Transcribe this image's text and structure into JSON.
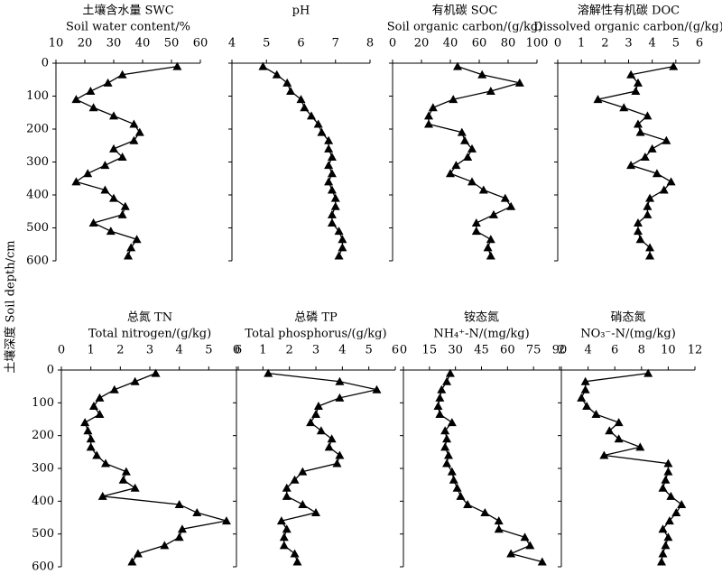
{
  "chart_data": [
    {
      "type": "line",
      "title": "土壤含水量 SWC",
      "subtitle": "Soil water content/%",
      "ylabel": "土壤深度 Soil depth/cm",
      "xlim": [
        10,
        60
      ],
      "xticks": [
        10,
        20,
        30,
        40,
        50,
        60
      ],
      "ylim": [
        0,
        600
      ],
      "yticks": [
        0,
        100,
        200,
        300,
        400,
        500,
        600
      ],
      "y": [
        10,
        35,
        60,
        85,
        110,
        135,
        160,
        185,
        210,
        235,
        260,
        285,
        310,
        335,
        360,
        385,
        410,
        435,
        460,
        485,
        510,
        535,
        560,
        585
      ],
      "values": [
        52,
        33,
        28,
        22,
        17,
        23,
        30,
        37,
        39,
        37,
        30,
        33,
        27,
        21,
        17,
        27,
        30,
        34,
        33,
        23,
        29,
        38,
        36,
        35
      ]
    },
    {
      "type": "line",
      "title": "pH",
      "xlim": [
        4,
        8
      ],
      "xticks": [
        4,
        5,
        6,
        7,
        8
      ],
      "ylim": [
        0,
        600
      ],
      "yticks": [
        0,
        100,
        200,
        300,
        400,
        500,
        600
      ],
      "y": [
        10,
        35,
        60,
        85,
        110,
        135,
        160,
        185,
        210,
        235,
        260,
        285,
        310,
        335,
        360,
        385,
        410,
        435,
        460,
        485,
        510,
        535,
        560,
        585
      ],
      "values": [
        4.9,
        5.3,
        5.6,
        5.7,
        6.0,
        6.1,
        6.3,
        6.5,
        6.6,
        6.8,
        6.8,
        6.9,
        6.8,
        6.9,
        6.8,
        6.9,
        7.0,
        7.0,
        6.9,
        6.9,
        7.1,
        7.2,
        7.2,
        7.1
      ]
    },
    {
      "type": "line",
      "title": "有机碳 SOC",
      "subtitle": "Soil organic carbon/(g/kg)",
      "xlim": [
        0,
        100
      ],
      "xticks": [
        0,
        20,
        40,
        60,
        80,
        100
      ],
      "ylim": [
        0,
        600
      ],
      "yticks": [
        0,
        100,
        200,
        300,
        400,
        500,
        600
      ],
      "y": [
        10,
        35,
        60,
        85,
        110,
        135,
        160,
        185,
        210,
        235,
        260,
        285,
        310,
        335,
        360,
        385,
        410,
        435,
        460,
        485,
        510,
        535,
        560,
        585
      ],
      "values": [
        45,
        62,
        88,
        68,
        42,
        28,
        25,
        25,
        48,
        50,
        55,
        52,
        44,
        40,
        55,
        63,
        78,
        82,
        70,
        58,
        58,
        68,
        66,
        68
      ]
    },
    {
      "type": "line",
      "title": "溶解性有机碳 DOC",
      "subtitle": "Dissolved organic carbon/(g/kg)",
      "xlim": [
        0,
        6
      ],
      "xticks": [
        0,
        1,
        2,
        3,
        4,
        5,
        6
      ],
      "ylim": [
        0,
        600
      ],
      "yticks": [
        0,
        100,
        200,
        300,
        400,
        500,
        600
      ],
      "y": [
        10,
        35,
        60,
        85,
        110,
        135,
        160,
        185,
        210,
        235,
        260,
        285,
        310,
        335,
        360,
        385,
        410,
        435,
        460,
        485,
        510,
        535,
        560,
        585
      ],
      "values": [
        4.9,
        3.1,
        3.4,
        3.3,
        1.7,
        2.8,
        3.8,
        3.4,
        3.5,
        4.6,
        4.0,
        3.7,
        3.1,
        4.2,
        4.8,
        4.5,
        3.9,
        3.8,
        3.8,
        3.4,
        3.4,
        3.5,
        3.9,
        3.9
      ]
    },
    {
      "type": "line",
      "title": "总氮 TN",
      "subtitle": "Total nitrogen/(g/kg)",
      "xlim": [
        0,
        6
      ],
      "xticks": [
        0,
        1,
        2,
        3,
        4,
        5,
        6
      ],
      "ylim": [
        0,
        600
      ],
      "yticks": [
        0,
        100,
        200,
        300,
        400,
        500,
        600
      ],
      "y": [
        10,
        35,
        60,
        85,
        110,
        135,
        160,
        185,
        210,
        235,
        260,
        285,
        310,
        335,
        360,
        385,
        410,
        435,
        460,
        485,
        510,
        535,
        560,
        585
      ],
      "values": [
        3.2,
        2.5,
        1.8,
        1.3,
        1.1,
        1.3,
        0.8,
        0.9,
        1.0,
        1.0,
        1.2,
        1.5,
        2.2,
        2.1,
        2.5,
        1.4,
        4.0,
        4.6,
        5.6,
        4.1,
        4.0,
        3.5,
        2.6,
        2.4
      ]
    },
    {
      "type": "line",
      "title": "总磷 TP",
      "subtitle": "Total phosphorus/(g/kg)",
      "xlim": [
        0,
        6
      ],
      "xticks": [
        0,
        1,
        2,
        3,
        4,
        5,
        6
      ],
      "ylim": [
        0,
        600
      ],
      "yticks": [
        0,
        100,
        200,
        300,
        400,
        500,
        600
      ],
      "y": [
        10,
        35,
        60,
        85,
        110,
        135,
        160,
        185,
        210,
        235,
        260,
        285,
        310,
        335,
        360,
        385,
        410,
        435,
        460,
        485,
        510,
        535,
        560,
        585
      ],
      "values": [
        1.2,
        3.9,
        5.3,
        3.9,
        3.1,
        3.0,
        2.8,
        3.2,
        3.6,
        3.5,
        3.9,
        3.8,
        2.5,
        2.2,
        1.9,
        1.9,
        2.5,
        3.0,
        1.7,
        1.9,
        1.8,
        1.8,
        2.2,
        2.3
      ]
    },
    {
      "type": "line",
      "title": "铵态氮",
      "subtitle": "NH₄⁺-N/(mg/kg)",
      "xlim": [
        0,
        90
      ],
      "xticks": [
        0,
        15,
        30,
        45,
        60,
        75,
        90
      ],
      "ylim": [
        0,
        600
      ],
      "yticks": [
        0,
        100,
        200,
        300,
        400,
        500,
        600
      ],
      "y": [
        10,
        35,
        60,
        85,
        110,
        135,
        160,
        185,
        210,
        235,
        260,
        285,
        310,
        335,
        360,
        385,
        410,
        435,
        460,
        485,
        510,
        535,
        560,
        585
      ],
      "values": [
        27,
        25,
        22,
        21,
        20,
        21,
        28,
        24,
        25,
        24,
        26,
        25,
        28,
        29,
        31,
        33,
        37,
        47,
        55,
        55,
        70,
        73,
        62,
        80
      ]
    },
    {
      "type": "line",
      "title": "硝态氮",
      "subtitle": "NO₃⁻-N/(mg/kg)",
      "xlim": [
        2,
        12
      ],
      "xticks": [
        2,
        4,
        6,
        8,
        10,
        12
      ],
      "ylim": [
        0,
        600
      ],
      "yticks": [
        0,
        100,
        200,
        300,
        400,
        500,
        600
      ],
      "y": [
        10,
        35,
        60,
        85,
        110,
        135,
        160,
        185,
        210,
        235,
        260,
        285,
        310,
        335,
        360,
        385,
        410,
        435,
        460,
        485,
        510,
        535,
        560,
        585
      ],
      "values": [
        8.5,
        3.8,
        3.8,
        3.5,
        3.9,
        4.6,
        6.3,
        5.6,
        6.3,
        7.9,
        5.2,
        10.0,
        10.0,
        9.8,
        9.6,
        10.2,
        11.0,
        10.6,
        10.1,
        9.6,
        10.0,
        9.8,
        9.6,
        9.5
      ]
    }
  ]
}
